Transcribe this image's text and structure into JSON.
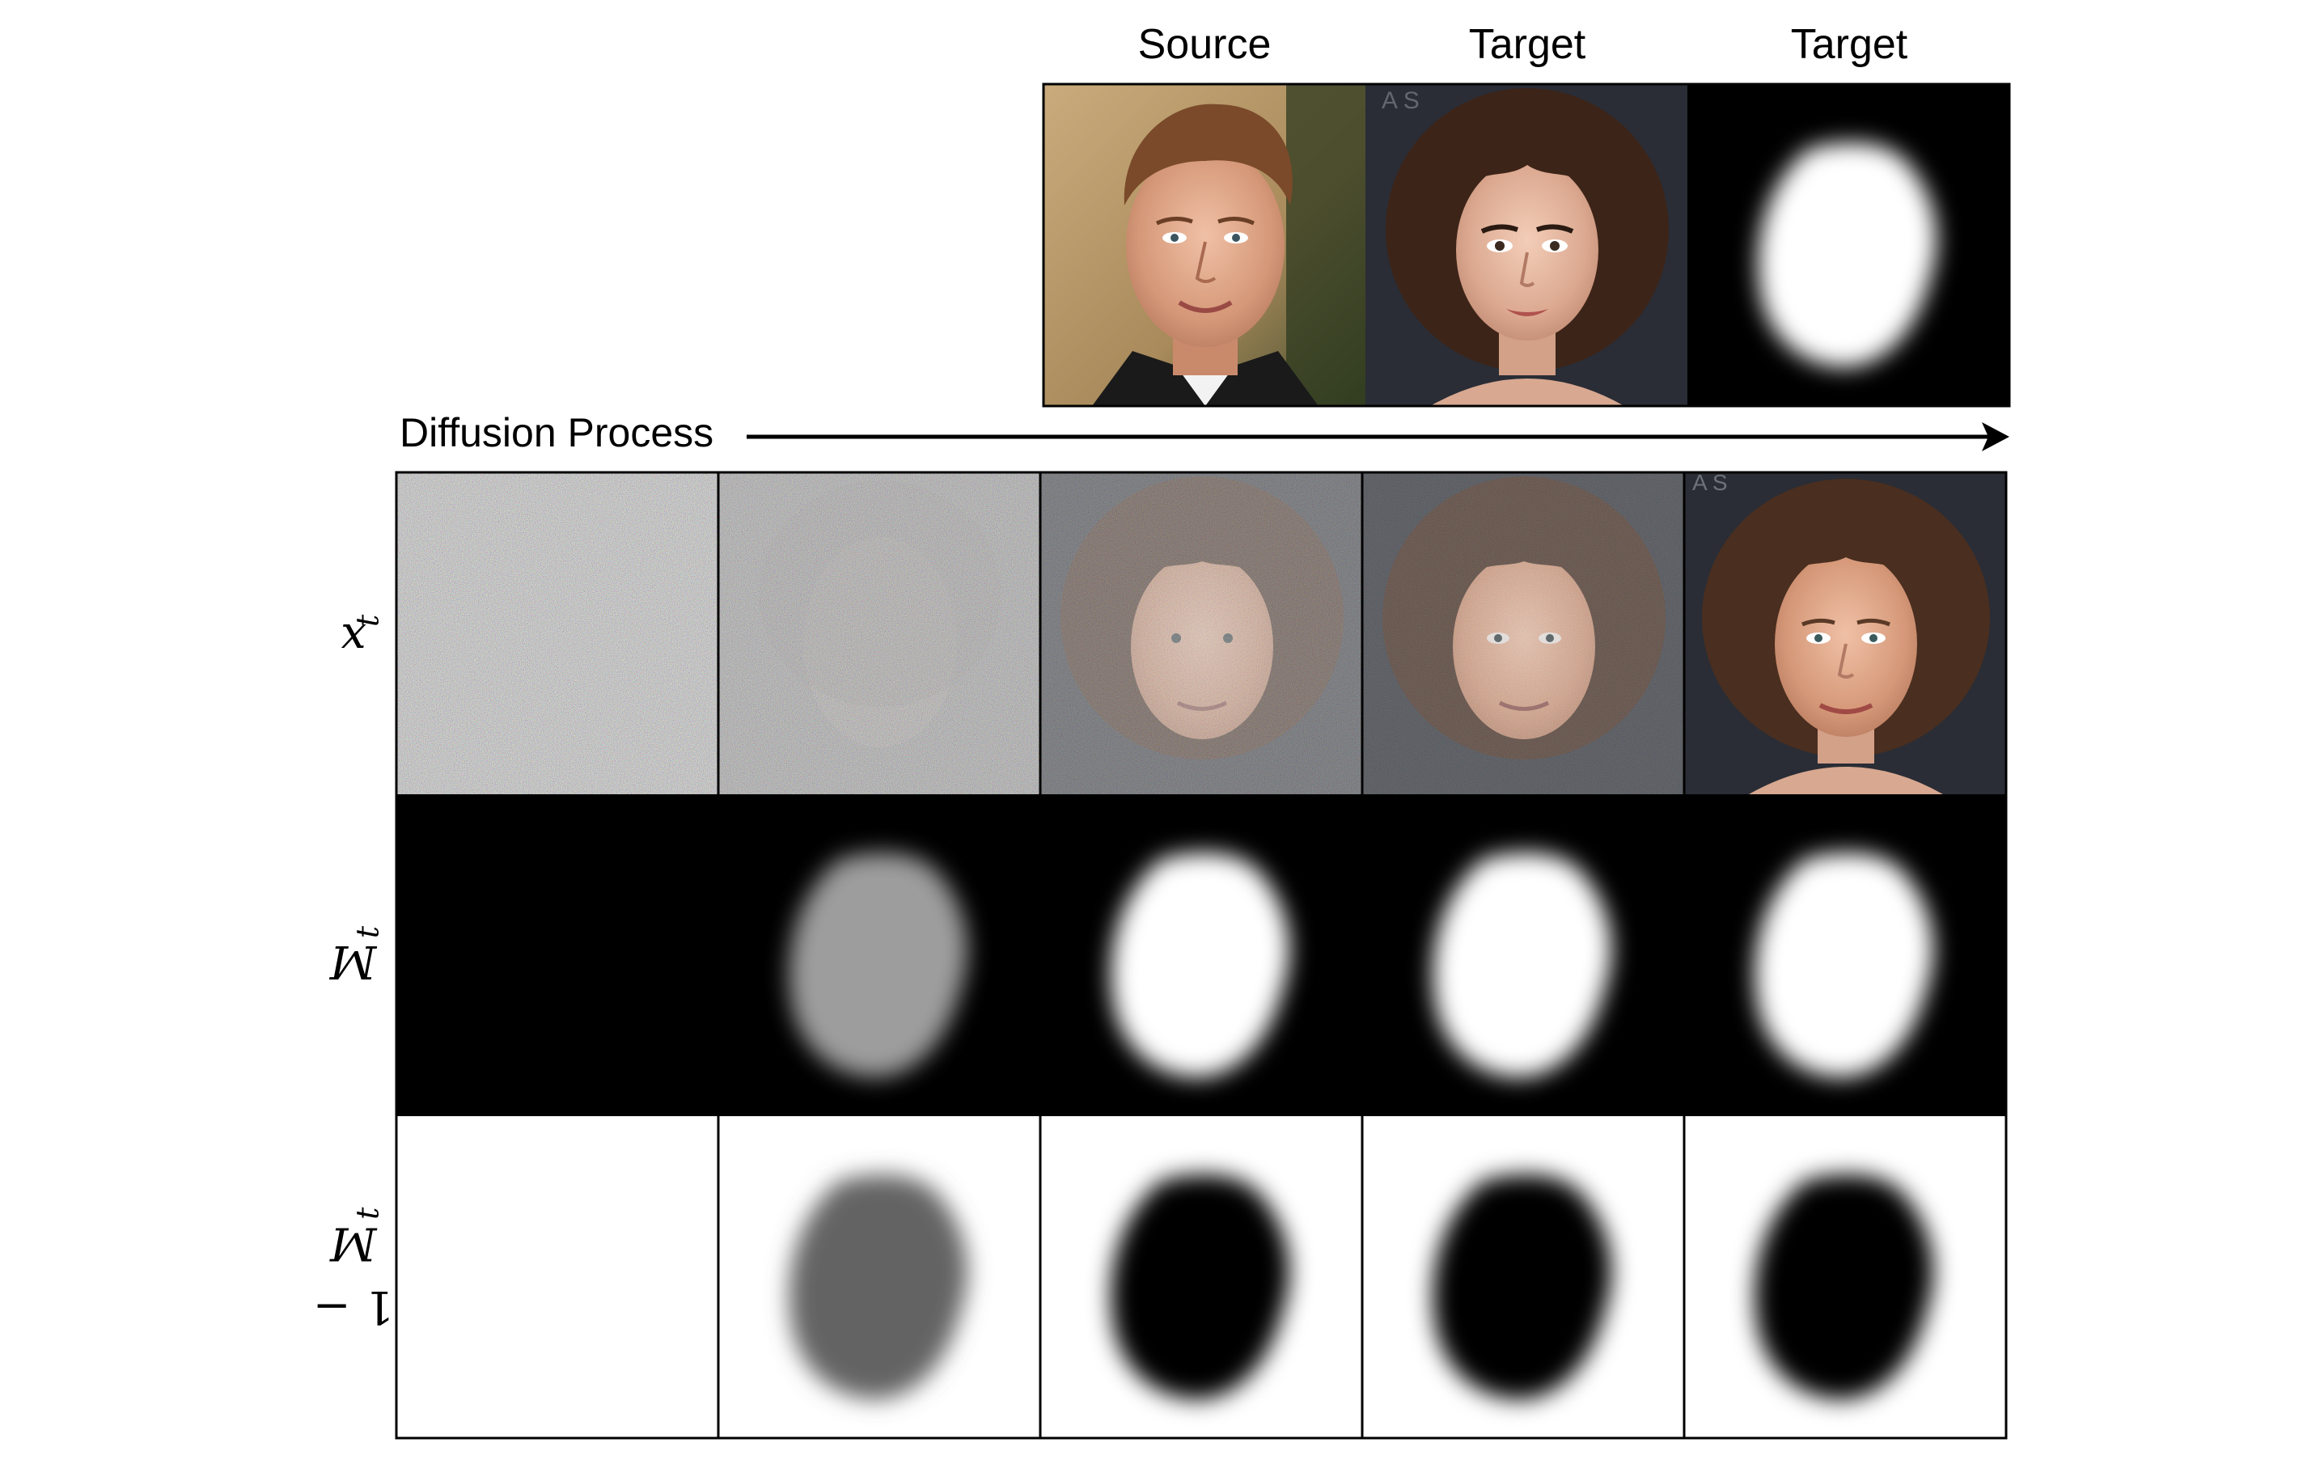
{
  "header": {
    "col_titles": [
      "Source",
      "Target",
      "Target"
    ]
  },
  "diffusion": {
    "label": "Diffusion Process"
  },
  "rows": {
    "xt": {
      "base": "x",
      "sub": "t"
    },
    "mt": {
      "base": "M",
      "sub": "t"
    },
    "one_minus_mt": {
      "prefix": "1 − ",
      "base": "M",
      "sub": "t"
    }
  },
  "colors": {
    "mask_white": "#ffffff",
    "mask_black": "#000000",
    "mask_mid_gray": "#9d9d9d",
    "inv_mid_gray": "#636363",
    "skin": "#d9a28a",
    "hair": "#4a2f22",
    "backdrop": "#2a2d35"
  },
  "icons": {
    "arrow": "right-arrow-icon"
  }
}
